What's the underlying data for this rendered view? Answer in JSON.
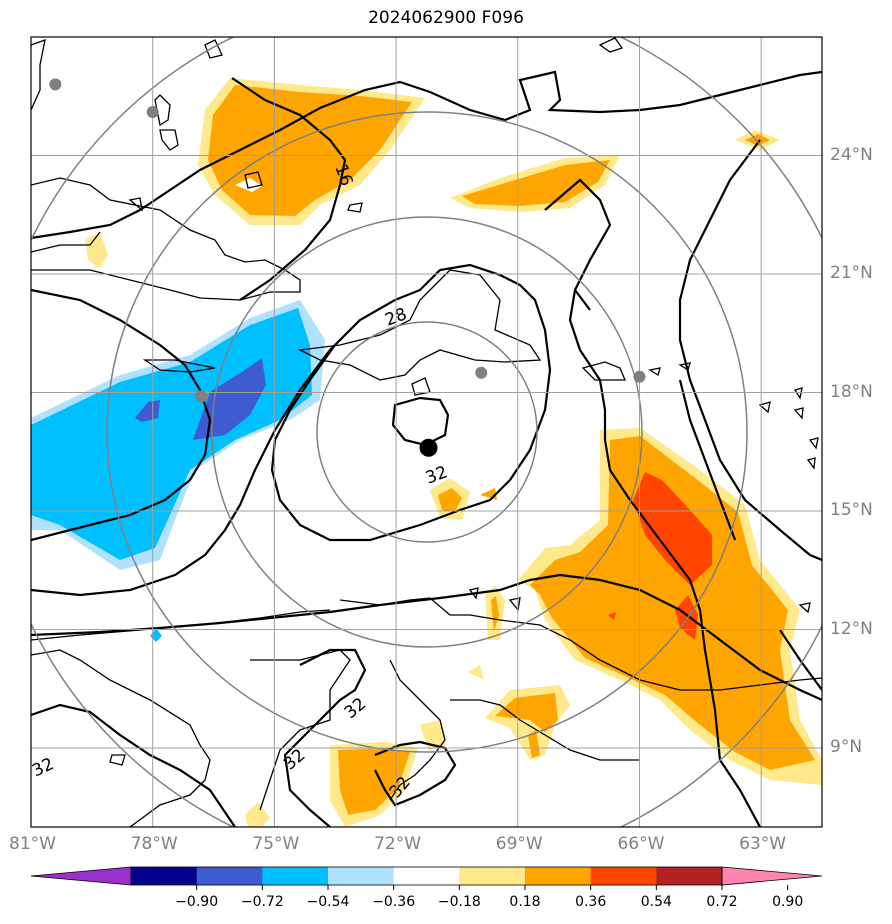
{
  "title": "2024062900 F096",
  "map": {
    "lon_range": [
      -81,
      -61.5
    ],
    "lat_range": [
      7,
      27
    ],
    "longitude_ticks": [
      {
        "value": -81,
        "label": "81°W"
      },
      {
        "value": -78,
        "label": "78°W"
      },
      {
        "value": -75,
        "label": "75°W"
      },
      {
        "value": -72,
        "label": "72°W"
      },
      {
        "value": -69,
        "label": "69°W"
      },
      {
        "value": -66,
        "label": "66°W"
      },
      {
        "value": -63,
        "label": "63°W"
      }
    ],
    "latitude_ticks": [
      {
        "value": 24,
        "label": "24°N"
      },
      {
        "value": 21,
        "label": "21°N"
      },
      {
        "value": 18,
        "label": "18°N"
      },
      {
        "value": 15,
        "label": "15°N"
      },
      {
        "value": 12,
        "label": "12°N"
      },
      {
        "value": 9,
        "label": "9°N"
      }
    ],
    "grid": true,
    "center_marker": {
      "lon": -71.2,
      "lat": 16.6
    },
    "station_markers": [
      {
        "lon": -80.4,
        "lat": 25.8
      },
      {
        "lon": -78.0,
        "lat": 25.1
      },
      {
        "lon": -76.8,
        "lat": 17.9
      },
      {
        "lon": -69.9,
        "lat": 18.5
      },
      {
        "lon": -66.0,
        "lat": 18.4
      }
    ],
    "contour_labels": [
      {
        "text": "16",
        "lon": -73.3,
        "lat": 23.5,
        "rotate": 70
      },
      {
        "text": "28",
        "lon": -72.0,
        "lat": 19.9,
        "rotate": -20
      },
      {
        "text": "32",
        "lon": -71.0,
        "lat": 15.9,
        "rotate": -20
      },
      {
        "text": "32",
        "lon": -73.0,
        "lat": 10.0,
        "rotate": -40
      },
      {
        "text": "32",
        "lon": -74.5,
        "lat": 8.7,
        "rotate": -40
      },
      {
        "text": "32",
        "lon": -80.7,
        "lat": 8.5,
        "rotate": -25
      },
      {
        "text": "32",
        "lon": -71.9,
        "lat": 8.0,
        "rotate": -50
      }
    ]
  },
  "colorbar": {
    "extend": "both",
    "colors": [
      "#9932cc",
      "#00008b",
      "#3f5bd0",
      "#00bfff",
      "#b0e2ff",
      "#ffffff",
      "#ffe98a",
      "#ffa500",
      "#ff4500",
      "#b22222",
      "#ff85b0"
    ],
    "ticks": [
      {
        "value": -0.9,
        "label": "−0.90"
      },
      {
        "value": -0.72,
        "label": "−0.72"
      },
      {
        "value": -0.54,
        "label": "−0.54"
      },
      {
        "value": -0.36,
        "label": "−0.36"
      },
      {
        "value": -0.18,
        "label": "−0.18"
      },
      {
        "value": 0.18,
        "label": "0.18"
      },
      {
        "value": 0.36,
        "label": "0.36"
      },
      {
        "value": 0.54,
        "label": "0.54"
      },
      {
        "value": 0.72,
        "label": "0.72"
      },
      {
        "value": 0.9,
        "label": "0.90"
      }
    ]
  }
}
